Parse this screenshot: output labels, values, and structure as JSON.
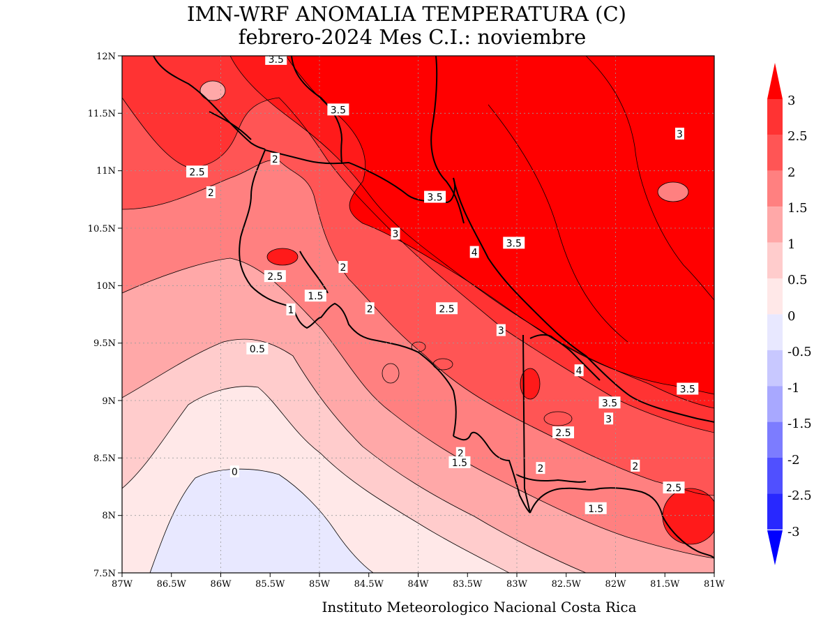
{
  "title": {
    "line1": "IMN-WRF  ANOMALIA TEMPERATURA (C)",
    "line2": "febrero-2024 Mes C.I.: noviembre"
  },
  "credit": "Instituto Meteorologico Nacional Costa Rica",
  "axes": {
    "x_ticks": [
      "87W",
      "86.5W",
      "86W",
      "85.5W",
      "85W",
      "84.5W",
      "84W",
      "83.5W",
      "83W",
      "82.5W",
      "82W",
      "81.5W",
      "81W"
    ],
    "y_ticks": [
      "12N",
      "11.5N",
      "11N",
      "10.5N",
      "10N",
      "9.5N",
      "9N",
      "8.5N",
      "8N",
      "7.5N"
    ],
    "lon_range": [
      -87,
      -81
    ],
    "lat_range": [
      7.5,
      12
    ],
    "grid": "dotted"
  },
  "colorbar": {
    "labels": [
      "3",
      "2.5",
      "2",
      "1.5",
      "1",
      "0.5",
      "0",
      "-0.5",
      "-1",
      "-1.5",
      "-2",
      "-2.5",
      "-3"
    ],
    "colors": [
      "#ff0000",
      "#ff3333",
      "#ff5555",
      "#ff8080",
      "#ffa8a8",
      "#ffcccc",
      "#ffe8e8",
      "#e8e8ff",
      "#c8c8ff",
      "#a8a8ff",
      "#7c7cff",
      "#5050ff",
      "#2828ff",
      "#0000ff"
    ]
  },
  "contour_labels": [
    {
      "text": "3.5",
      "lon": -85.44,
      "lat": 11.97
    },
    {
      "text": "3.5",
      "lon": -84.81,
      "lat": 11.53
    },
    {
      "text": "2",
      "lon": -85.45,
      "lat": 11.1
    },
    {
      "text": "2.5",
      "lon": -86.24,
      "lat": 10.99
    },
    {
      "text": "2",
      "lon": -86.1,
      "lat": 10.81
    },
    {
      "text": "3.5",
      "lon": -83.83,
      "lat": 10.77
    },
    {
      "text": "3",
      "lon": -84.23,
      "lat": 10.45
    },
    {
      "text": "4",
      "lon": -83.43,
      "lat": 10.29
    },
    {
      "text": "3.5",
      "lon": -83.03,
      "lat": 10.37
    },
    {
      "text": "3",
      "lon": -81.35,
      "lat": 11.32
    },
    {
      "text": "2",
      "lon": -84.76,
      "lat": 10.16
    },
    {
      "text": "2.5",
      "lon": -85.45,
      "lat": 10.08
    },
    {
      "text": "1.5",
      "lon": -85.04,
      "lat": 9.91
    },
    {
      "text": "1",
      "lon": -85.29,
      "lat": 9.79
    },
    {
      "text": "2",
      "lon": -84.49,
      "lat": 9.8
    },
    {
      "text": "2.5",
      "lon": -83.71,
      "lat": 9.8
    },
    {
      "text": "3",
      "lon": -83.16,
      "lat": 9.61
    },
    {
      "text": "0.5",
      "lon": -85.63,
      "lat": 9.45
    },
    {
      "text": "4",
      "lon": -82.37,
      "lat": 9.26
    },
    {
      "text": "3.5",
      "lon": -81.27,
      "lat": 9.1
    },
    {
      "text": "3.5",
      "lon": -82.06,
      "lat": 8.98
    },
    {
      "text": "3",
      "lon": -82.07,
      "lat": 8.84
    },
    {
      "text": "2.5",
      "lon": -82.53,
      "lat": 8.72
    },
    {
      "text": "2",
      "lon": -83.57,
      "lat": 8.54
    },
    {
      "text": "1.5",
      "lon": -83.58,
      "lat": 8.46
    },
    {
      "text": "2",
      "lon": -82.76,
      "lat": 8.41
    },
    {
      "text": "2",
      "lon": -81.8,
      "lat": 8.43
    },
    {
      "text": "2.5",
      "lon": -81.41,
      "lat": 8.24
    },
    {
      "text": "1.5",
      "lon": -82.2,
      "lat": 8.06
    },
    {
      "text": "0",
      "lon": -85.86,
      "lat": 8.38
    }
  ]
}
